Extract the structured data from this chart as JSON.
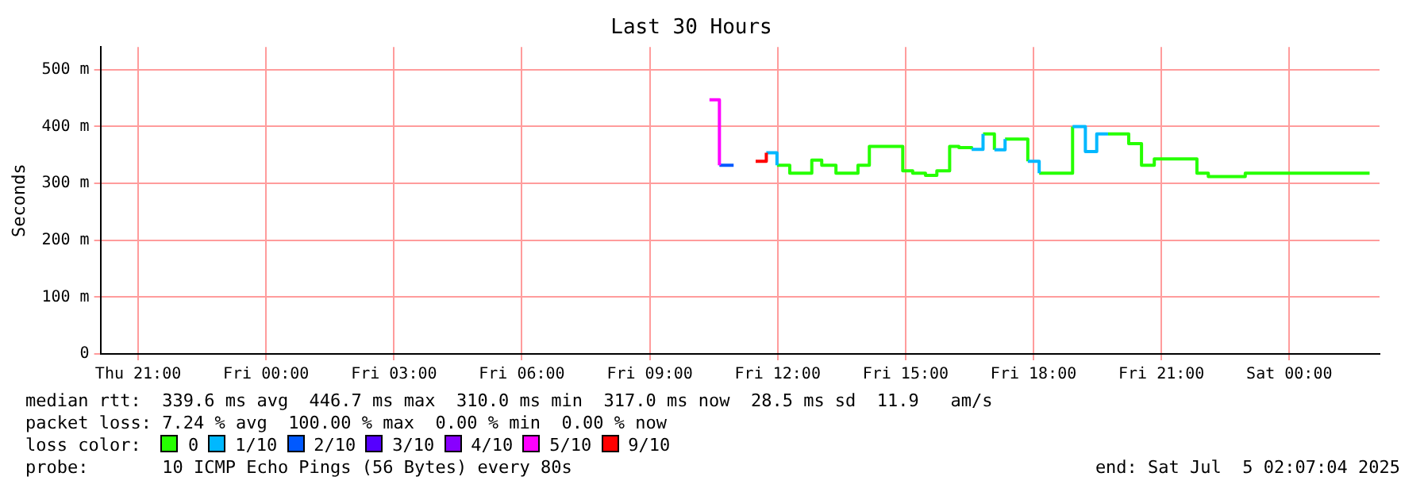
{
  "chart_data": {
    "type": "step",
    "title": "Last 30 Hours",
    "ylabel": "Seconds",
    "xlim": [
      "2025-07-03T20:07",
      "2025-07-05T02:07"
    ],
    "xticks": [
      {
        "value": "2025-07-03T21:00",
        "label": "Thu 21:00"
      },
      {
        "value": "2025-07-04T00:00",
        "label": "Fri 00:00"
      },
      {
        "value": "2025-07-04T03:00",
        "label": "Fri 03:00"
      },
      {
        "value": "2025-07-04T06:00",
        "label": "Fri 06:00"
      },
      {
        "value": "2025-07-04T09:00",
        "label": "Fri 09:00"
      },
      {
        "value": "2025-07-04T12:00",
        "label": "Fri 12:00"
      },
      {
        "value": "2025-07-04T15:00",
        "label": "Fri 15:00"
      },
      {
        "value": "2025-07-04T18:00",
        "label": "Fri 18:00"
      },
      {
        "value": "2025-07-04T21:00",
        "label": "Fri 21:00"
      },
      {
        "value": "2025-07-05T00:00",
        "label": "Sat 00:00"
      }
    ],
    "ylim": [
      0,
      540
    ],
    "yticks": [
      0,
      {
        "value": 100,
        "label": "100 m"
      },
      {
        "value": 200,
        "label": "200 m"
      },
      {
        "value": 300,
        "label": "300 m"
      },
      {
        "value": 400,
        "label": "400 m"
      },
      {
        "value": 500,
        "label": "500 m"
      }
    ],
    "grid": true,
    "legend": "bottom",
    "legend_title": "loss color:",
    "series": [
      {
        "name": "0",
        "color": "#26ff00",
        "x": [
          "2025-07-04T11:59",
          "2025-07-04T12:17",
          "2025-07-04T12:48",
          "2025-07-04T13:02",
          "2025-07-04T13:22",
          "2025-07-04T13:53",
          "2025-07-04T14:09",
          "2025-07-04T14:56",
          "2025-07-04T15:10",
          "2025-07-04T15:28",
          "2025-07-04T15:44",
          "2025-07-04T16:02",
          "2025-07-04T16:15",
          "2025-07-04T16:33",
          null,
          "2025-07-04T16:49",
          "2025-07-04T17:05",
          null,
          "2025-07-04T17:20",
          "2025-07-04T17:52",
          null,
          "2025-07-04T18:08",
          "2025-07-04T18:55",
          null,
          "2025-07-04T19:45",
          "2025-07-04T20:14",
          "2025-07-04T20:32",
          "2025-07-04T20:50",
          "2025-07-04T21:50",
          "2025-07-04T22:06",
          "2025-07-04T22:58",
          "2025-07-05T01:53"
        ],
        "values": [
          332,
          318,
          341,
          332,
          318,
          332,
          365,
          322,
          318,
          314,
          322,
          365,
          363,
          360,
          null,
          387,
          359,
          null,
          378,
          339,
          null,
          318,
          400,
          null,
          387,
          370,
          332,
          343,
          318,
          312,
          318,
          318
        ]
      },
      {
        "name": "1/10",
        "color": "#00b8ff",
        "x": [
          "2025-07-04T11:44",
          "2025-07-04T11:59",
          null,
          "2025-07-04T16:33",
          "2025-07-04T16:49",
          null,
          "2025-07-04T17:05",
          "2025-07-04T17:20",
          null,
          "2025-07-04T17:52",
          "2025-07-04T18:08",
          null,
          "2025-07-04T18:55",
          "2025-07-04T19:13",
          "2025-07-04T19:29",
          "2025-07-04T19:45"
        ],
        "values": [
          354,
          332,
          null,
          360,
          387,
          null,
          359,
          378,
          null,
          339,
          318,
          null,
          400,
          356,
          387,
          387
        ]
      },
      {
        "name": "2/10",
        "color": "#0059ff",
        "x": [
          "2025-07-04T10:38",
          "2025-07-04T10:58"
        ],
        "values": [
          332,
          332
        ]
      },
      {
        "name": "3/10",
        "color": "#5500ff"
      },
      {
        "name": "4/10",
        "color": "#8800ff"
      },
      {
        "name": "5/10",
        "color": "#ff00ff",
        "x": [
          "2025-07-04T10:24",
          "2025-07-04T10:38"
        ],
        "values": [
          447,
          332
        ]
      },
      {
        "name": "9/10",
        "color": "#ff0000",
        "x": [
          "2025-07-04T11:29",
          "2025-07-04T11:44"
        ],
        "values": [
          339,
          354
        ]
      }
    ],
    "annotations": [
      "median rtt:  339.6 ms avg  446.7 ms max  310.0 ms min  317.0 ms now  28.5 ms sd  11.9   am/s",
      "packet loss: 7.24 % avg  100.00 % max  0.00 % min  0.00 % now",
      "probe:       10 ICMP Echo Pings (56 Bytes) every 80s",
      "end: Sat Jul  5 02:07:04 2025"
    ]
  }
}
